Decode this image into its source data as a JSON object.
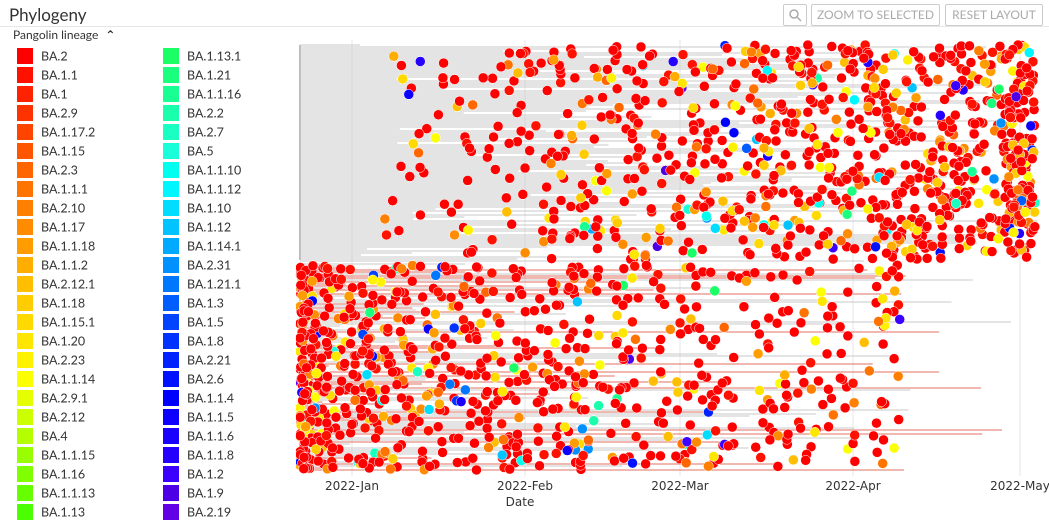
{
  "header": {
    "title": "Phylogeny",
    "buttons": [
      "ZOOM TO SELECTED",
      "RESET LAYOUT"
    ]
  },
  "legend": {
    "title": "Pangolin lineage",
    "columns": [
      [
        {
          "label": "BA.2",
          "color": "hsl(0,100%,50%)"
        },
        {
          "label": "BA.1.1",
          "color": "hsl(4,100%,50%)"
        },
        {
          "label": "BA.1",
          "color": "hsl(8,100%,50%)"
        },
        {
          "label": "BA.2.9",
          "color": "hsl(12,100%,50%)"
        },
        {
          "label": "BA.1.17.2",
          "color": "hsl(16,100%,50%)"
        },
        {
          "label": "BA.1.15",
          "color": "hsl(20,100%,50%)"
        },
        {
          "label": "BA.2.3",
          "color": "hsl(24,100%,50%)"
        },
        {
          "label": "BA.1.1.1",
          "color": "hsl(27,100%,50%)"
        },
        {
          "label": "BA.2.10",
          "color": "hsl(30,100%,50%)"
        },
        {
          "label": "BA.1.17",
          "color": "hsl(33,100%,50%)"
        },
        {
          "label": "BA.1.1.18",
          "color": "hsl(37,100%,50%)"
        },
        {
          "label": "BA.1.1.2",
          "color": "hsl(41,100%,50%)"
        },
        {
          "label": "BA.2.12.1",
          "color": "hsl(45,100%,50%)"
        },
        {
          "label": "BA.1.18",
          "color": "hsl(48,100%,50%)"
        },
        {
          "label": "BA.1.15.1",
          "color": "hsl(51,100%,50%)"
        },
        {
          "label": "BA.1.20",
          "color": "hsl(54,100%,50%)"
        },
        {
          "label": "BA.2.23",
          "color": "hsl(57,100%,50%)"
        },
        {
          "label": "BA.1.1.14",
          "color": "hsl(61,100%,50%)"
        },
        {
          "label": "BA.2.9.1",
          "color": "hsl(66,100%,50%)"
        },
        {
          "label": "BA.2.12",
          "color": "hsl(72,100%,50%)"
        },
        {
          "label": "BA.4",
          "color": "hsl(78,100%,50%)"
        },
        {
          "label": "BA.1.1.15",
          "color": "hsl(84,100%,50%)"
        },
        {
          "label": "BA.1.16",
          "color": "hsl(90,100%,50%)"
        },
        {
          "label": "BA.1.1.13",
          "color": "hsl(96,100%,50%)"
        },
        {
          "label": "BA.1.13",
          "color": "hsl(102,100%,50%)"
        }
      ],
      [
        {
          "label": "BA.1.13.1",
          "color": "hsl(140,100%,55%)"
        },
        {
          "label": "BA.1.21",
          "color": "hsl(146,100%,55%)"
        },
        {
          "label": "BA.1.1.16",
          "color": "hsl(152,100%,55%)"
        },
        {
          "label": "BA.2.2",
          "color": "hsl(158,100%,55%)"
        },
        {
          "label": "BA.2.7",
          "color": "hsl(164,100%,55%)"
        },
        {
          "label": "BA.5",
          "color": "hsl(170,100%,55%)"
        },
        {
          "label": "BA.1.1.10",
          "color": "hsl(176,100%,50%)"
        },
        {
          "label": "BA.1.1.12",
          "color": "hsl(182,100%,50%)"
        },
        {
          "label": "BA.1.10",
          "color": "hsl(188,100%,50%)"
        },
        {
          "label": "BA.1.12",
          "color": "hsl(194,100%,50%)"
        },
        {
          "label": "BA.1.14.1",
          "color": "hsl(200,100%,50%)"
        },
        {
          "label": "BA.2.31",
          "color": "hsl(206,100%,50%)"
        },
        {
          "label": "BA.1.21.1",
          "color": "hsl(212,100%,50%)"
        },
        {
          "label": "BA.1.3",
          "color": "hsl(218,100%,50%)"
        },
        {
          "label": "BA.1.5",
          "color": "hsl(224,100%,50%)"
        },
        {
          "label": "BA.1.8",
          "color": "hsl(228,100%,50%)"
        },
        {
          "label": "BA.2.21",
          "color": "hsl(232,100%,50%)"
        },
        {
          "label": "BA.2.6",
          "color": "hsl(236,100%,50%)"
        },
        {
          "label": "BA.1.1.4",
          "color": "hsl(240,100%,50%)"
        },
        {
          "label": "BA.1.1.5",
          "color": "hsl(243,100%,50%)"
        },
        {
          "label": "BA.1.1.6",
          "color": "hsl(246,100%,50%)"
        },
        {
          "label": "BA.1.1.8",
          "color": "hsl(249,100%,50%)"
        },
        {
          "label": "BA.1.2",
          "color": "hsl(254,100%,50%)"
        },
        {
          "label": "BA.1.9",
          "color": "hsl(260,100%,45%)"
        },
        {
          "label": "BA.2.19",
          "color": "hsl(266,100%,45%)"
        }
      ]
    ]
  },
  "axis": {
    "ticks": [
      "2022-Jan",
      "2022-Feb",
      "2022-Mar",
      "2022-Apr",
      "2022-May"
    ],
    "label": "Date"
  }
}
